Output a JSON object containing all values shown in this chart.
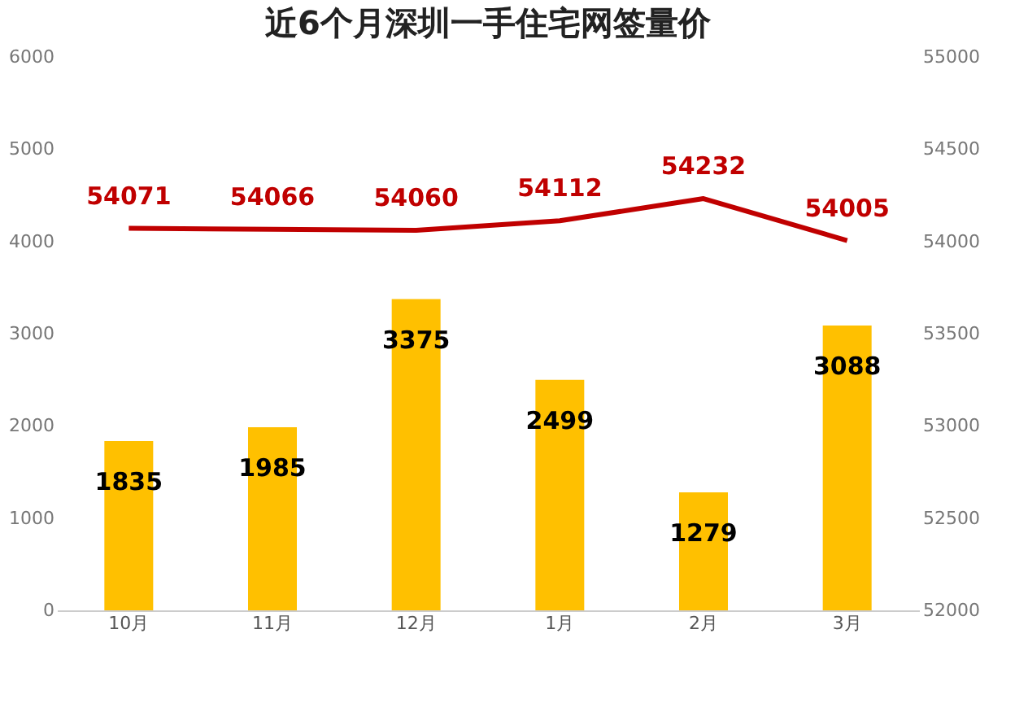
{
  "chart_data": {
    "type": "bar",
    "title": "近6个月深圳一手住宅网签量价",
    "categories": [
      "10月",
      "11月",
      "12月",
      "1月",
      "2月",
      "3月"
    ],
    "series": [
      {
        "color": "#ffc000",
        "values": [
          1835,
          1985,
          3375,
          2499,
          1279,
          3088
        ]
      },
      {
        "type": "line",
        "axis": "y2",
        "color": "#c00000",
        "values": [
          54071,
          54066,
          54060,
          54112,
          54232,
          54005
        ]
      }
    ],
    "ylim": [
      0,
      6000
    ],
    "yticks": [
      0,
      1000,
      2000,
      3000,
      4000,
      5000,
      6000
    ],
    "y2lim": [
      52000,
      55000
    ],
    "y2ticks": [
      52000,
      52500,
      53000,
      53500,
      54000,
      54500,
      55000
    ],
    "data_labels": true,
    "grid": false,
    "marker": "none",
    "line_style": "solid"
  }
}
